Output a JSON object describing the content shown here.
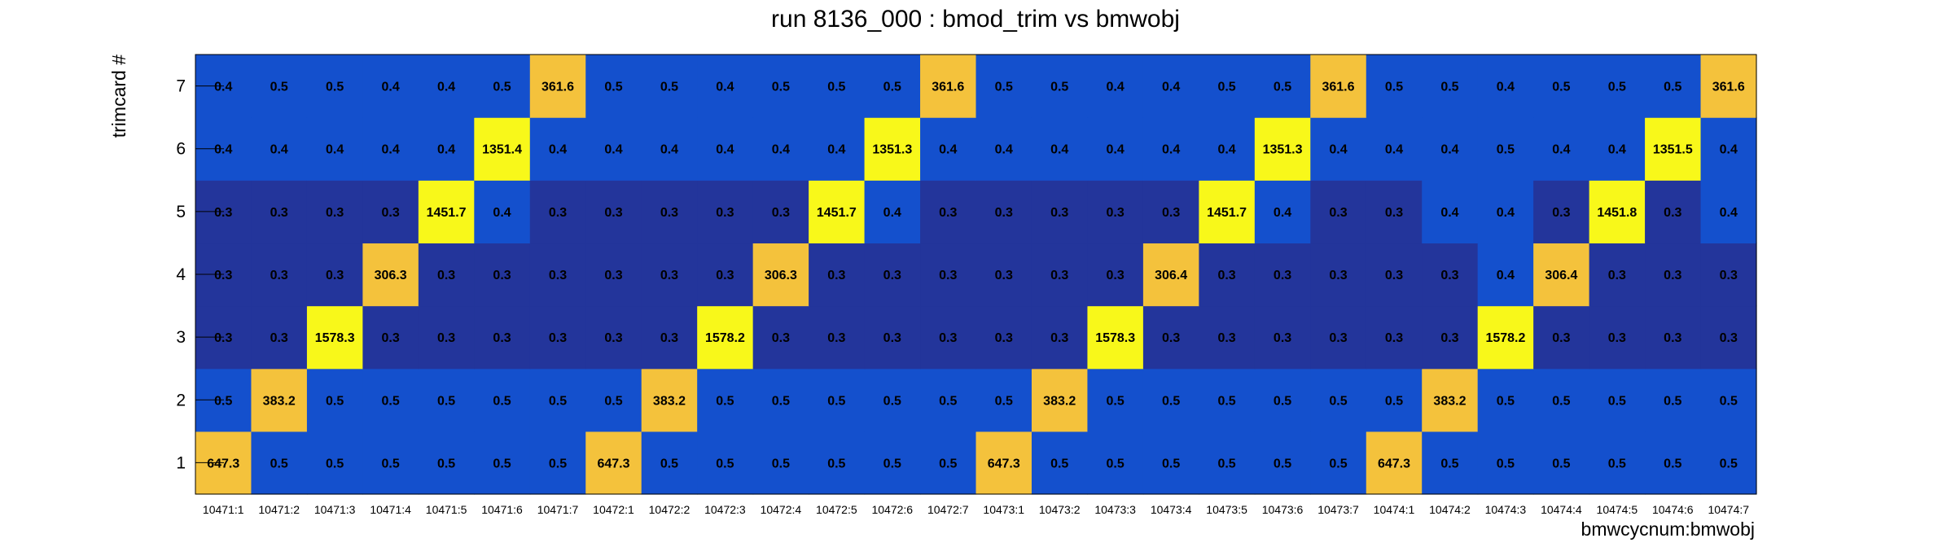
{
  "chart_data": {
    "type": "heatmap",
    "title": "run 8136_000 : bmod_trim vs bmwobj",
    "xlabel": "bmwcycnum:bmwobj",
    "ylabel": "trimcard #",
    "x_categories": [
      "10471:1",
      "10471:2",
      "10471:3",
      "10471:4",
      "10471:5",
      "10471:6",
      "10471:7",
      "10472:1",
      "10472:2",
      "10472:3",
      "10472:4",
      "10472:5",
      "10472:6",
      "10472:7",
      "10473:1",
      "10473:2",
      "10473:3",
      "10473:4",
      "10473:5",
      "10473:6",
      "10473:7",
      "10474:1",
      "10474:2",
      "10474:3",
      "10474:4",
      "10474:5",
      "10474:6",
      "10474:7"
    ],
    "y_categories": [
      "1",
      "2",
      "3",
      "4",
      "5",
      "6",
      "7"
    ],
    "values": [
      [
        647.3,
        0.5,
        0.5,
        0.5,
        0.5,
        0.5,
        0.5,
        647.3,
        0.5,
        0.5,
        0.5,
        0.5,
        0.5,
        0.5,
        647.3,
        0.5,
        0.5,
        0.5,
        0.5,
        0.5,
        0.5,
        647.3,
        0.5,
        0.5,
        0.5,
        0.5,
        0.5,
        0.5
      ],
      [
        0.5,
        383.2,
        0.5,
        0.5,
        0.5,
        0.5,
        0.5,
        0.5,
        383.2,
        0.5,
        0.5,
        0.5,
        0.5,
        0.5,
        0.5,
        383.2,
        0.5,
        0.5,
        0.5,
        0.5,
        0.5,
        0.5,
        383.2,
        0.5,
        0.5,
        0.5,
        0.5,
        0.5
      ],
      [
        0.3,
        0.3,
        1578.3,
        0.3,
        0.3,
        0.3,
        0.3,
        0.3,
        0.3,
        1578.2,
        0.3,
        0.3,
        0.3,
        0.3,
        0.3,
        0.3,
        1578.3,
        0.3,
        0.3,
        0.3,
        0.3,
        0.3,
        0.3,
        1578.2,
        0.3,
        0.3,
        0.3,
        0.3
      ],
      [
        0.3,
        0.3,
        0.3,
        306.3,
        0.3,
        0.3,
        0.3,
        0.3,
        0.3,
        0.3,
        306.3,
        0.3,
        0.3,
        0.3,
        0.3,
        0.3,
        0.3,
        306.4,
        0.3,
        0.3,
        0.3,
        0.3,
        0.3,
        0.4,
        306.4,
        0.3,
        0.3,
        0.3
      ],
      [
        0.3,
        0.3,
        0.3,
        0.3,
        1451.7,
        0.4,
        0.3,
        0.3,
        0.3,
        0.3,
        0.3,
        1451.7,
        0.4,
        0.3,
        0.3,
        0.3,
        0.3,
        0.3,
        1451.7,
        0.4,
        0.3,
        0.3,
        0.4,
        0.4,
        0.3,
        1451.8,
        0.3,
        0.4
      ],
      [
        0.4,
        0.4,
        0.4,
        0.4,
        0.4,
        1351.4,
        0.4,
        0.4,
        0.4,
        0.4,
        0.4,
        0.4,
        1351.3,
        0.4,
        0.4,
        0.4,
        0.4,
        0.4,
        0.4,
        1351.3,
        0.4,
        0.4,
        0.4,
        0.5,
        0.4,
        0.4,
        1351.5,
        0.4
      ],
      [
        0.4,
        0.5,
        0.5,
        0.4,
        0.4,
        0.5,
        361.6,
        0.5,
        0.5,
        0.4,
        0.5,
        0.5,
        0.5,
        361.6,
        0.5,
        0.5,
        0.4,
        0.4,
        0.5,
        0.5,
        361.6,
        0.5,
        0.5,
        0.4,
        0.5,
        0.5,
        0.5,
        361.6
      ]
    ],
    "colors": {
      "low_0.3": "#23359b",
      "low_0.4_0.5": "#1450cd",
      "mid": "#f4c23c",
      "high": "#f8f81a"
    },
    "color_thresholds": [
      0.35,
      100,
      1000
    ],
    "grid": false,
    "legend": "none"
  }
}
